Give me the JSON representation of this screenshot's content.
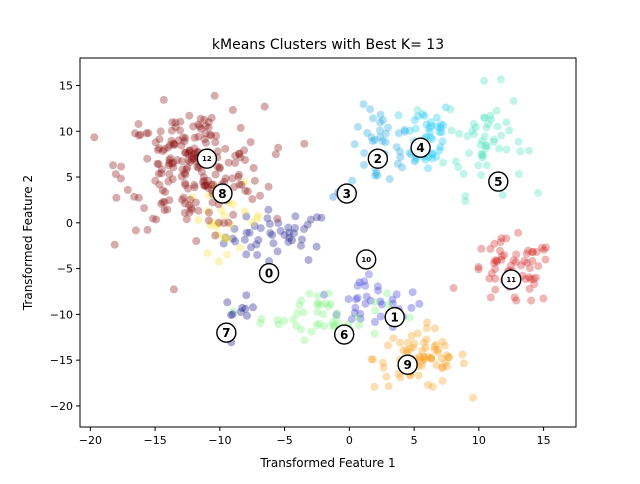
{
  "chart_data": {
    "type": "scatter",
    "title": "kMeans Clusters with Best K= 13",
    "xlabel": "Transformed Feature 1",
    "ylabel": "Transformed Feature 2",
    "xlim": [
      -20.8,
      17.5
    ],
    "ylim": [
      -22.3,
      18.0
    ],
    "xticks": [
      -20,
      -15,
      -10,
      -5,
      0,
      5,
      10,
      15
    ],
    "yticks": [
      -20,
      -15,
      -10,
      -5,
      0,
      5,
      10,
      15
    ],
    "grid": false,
    "clusters": [
      {
        "label": "0",
        "color": "#1f1f8f",
        "centroid": [
          -6.2,
          -5.5
        ],
        "center": [
          -5.5,
          -1.5
        ],
        "spread": [
          3.4,
          2.4
        ],
        "count": 45
      },
      {
        "label": "1",
        "color": "#3c3cd6",
        "centroid": [
          3.5,
          -10.3
        ],
        "center": [
          2.0,
          -9.2
        ],
        "spread": [
          3.2,
          1.8
        ],
        "count": 30
      },
      {
        "label": "2",
        "color": "#22a9e6",
        "centroid": [
          2.2,
          7.0
        ],
        "center": [
          2.5,
          8.0
        ],
        "spread": [
          2.0,
          3.8
        ],
        "count": 40
      },
      {
        "label": "3",
        "color": "#2c7fe8",
        "centroid": [
          -0.2,
          3.2
        ],
        "center": [
          -0.5,
          3.5
        ],
        "spread": [
          0.8,
          0.8
        ],
        "count": 4
      },
      {
        "label": "4",
        "color": "#1ec8f5",
        "centroid": [
          5.5,
          8.2
        ],
        "center": [
          6.0,
          9.5
        ],
        "spread": [
          1.6,
          3.5
        ],
        "count": 40
      },
      {
        "label": "5",
        "color": "#4fe3c0",
        "centroid": [
          11.5,
          4.5
        ],
        "center": [
          10.5,
          9.0
        ],
        "spread": [
          2.5,
          4.8
        ],
        "count": 55
      },
      {
        "label": "6",
        "color": "#7ef37e",
        "centroid": [
          -0.4,
          -12.2
        ],
        "center": [
          -2.0,
          -10.0
        ],
        "spread": [
          4.0,
          2.2
        ],
        "count": 45
      },
      {
        "label": "7",
        "color": "#14148a",
        "centroid": [
          -9.5,
          -12.0
        ],
        "center": [
          -8.5,
          -10.0
        ],
        "spread": [
          1.0,
          1.5
        ],
        "count": 10
      },
      {
        "label": "8",
        "color": "#f5e23a",
        "centroid": [
          -9.8,
          3.2
        ],
        "center": [
          -9.5,
          0.5
        ],
        "spread": [
          2.5,
          3.0
        ],
        "count": 28
      },
      {
        "label": "9",
        "color": "#f6a020",
        "centroid": [
          4.5,
          -15.5
        ],
        "center": [
          5.5,
          -14.8
        ],
        "spread": [
          3.0,
          2.8
        ],
        "count": 70
      },
      {
        "label": "10",
        "color": "#4848d8",
        "centroid": [
          1.3,
          -4.0
        ],
        "center": [
          1.5,
          -6.5
        ],
        "spread": [
          1.2,
          1.2
        ],
        "count": 6
      },
      {
        "label": "11",
        "color": "#d42a2a",
        "centroid": [
          12.5,
          -6.2
        ],
        "center": [
          12.5,
          -5.5
        ],
        "spread": [
          2.8,
          3.0
        ],
        "count": 65
      },
      {
        "label": "12",
        "color": "#8b1010",
        "centroid": [
          -11.0,
          7.0
        ],
        "center": [
          -12.0,
          6.0
        ],
        "spread": [
          4.5,
          5.5
        ],
        "count": 210
      }
    ]
  }
}
